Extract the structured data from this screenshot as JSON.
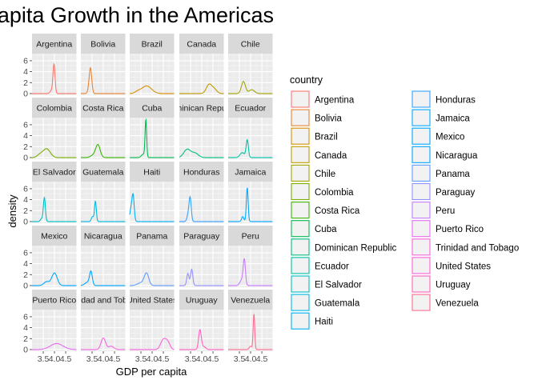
{
  "chart_data": {
    "type": "area",
    "title": "GDP Per Capita Growth in the Americas",
    "xlabel": "GDP per capita",
    "ylabel": "density",
    "x_ticks": [
      3.5,
      4.0,
      4.5
    ],
    "x_tick_labels": [
      "3.5",
      "4.0",
      "4.5"
    ],
    "y_ticks": [
      0,
      2,
      4,
      6
    ],
    "xlim": [
      3.0,
      4.98
    ],
    "ylim": [
      -0.3,
      7.3
    ],
    "grid": true,
    "legend_title": "country",
    "legend_position": "right",
    "series": [
      {
        "name": "Argentina",
        "color": "#F8766D",
        "peaks": [
          {
            "mu": 3.98,
            "sd": 0.045,
            "h": 5.2
          },
          {
            "mu": 3.88,
            "sd": 0.07,
            "h": 0.6
          }
        ]
      },
      {
        "name": "Bolivia",
        "color": "#EA8331",
        "peaks": [
          {
            "mu": 3.43,
            "sd": 0.055,
            "h": 4.6
          },
          {
            "mu": 3.34,
            "sd": 0.05,
            "h": 0.5
          }
        ]
      },
      {
        "name": "Brazil",
        "color": "#D89000",
        "peaks": [
          {
            "mu": 3.75,
            "sd": 0.22,
            "h": 1.4
          },
          {
            "mu": 3.35,
            "sd": 0.12,
            "h": 0.3
          }
        ]
      },
      {
        "name": "Canada",
        "color": "#C09B00",
        "peaks": [
          {
            "mu": 4.32,
            "sd": 0.12,
            "h": 1.6
          },
          {
            "mu": 4.55,
            "sd": 0.12,
            "h": 0.8
          }
        ]
      },
      {
        "name": "Chile",
        "color": "#A3A500",
        "peaks": [
          {
            "mu": 3.68,
            "sd": 0.09,
            "h": 2.2
          },
          {
            "mu": 4.05,
            "sd": 0.12,
            "h": 0.7
          }
        ]
      },
      {
        "name": "Colombia",
        "color": "#7CAE00",
        "peaks": [
          {
            "mu": 3.65,
            "sd": 0.16,
            "h": 1.6
          },
          {
            "mu": 3.35,
            "sd": 0.12,
            "h": 0.5
          }
        ]
      },
      {
        "name": "Costa Rica",
        "color": "#39B600",
        "peaks": [
          {
            "mu": 3.76,
            "sd": 0.1,
            "h": 2.3
          },
          {
            "mu": 3.55,
            "sd": 0.12,
            "h": 0.4
          }
        ]
      },
      {
        "name": "Cuba",
        "color": "#00BB4E",
        "peaks": [
          {
            "mu": 3.72,
            "sd": 0.035,
            "h": 6.8
          },
          {
            "mu": 3.6,
            "sd": 0.08,
            "h": 0.6
          }
        ]
      },
      {
        "name": "Dominican Republic",
        "color": "#00BF7D",
        "peaks": [
          {
            "mu": 3.35,
            "sd": 0.15,
            "h": 1.5
          },
          {
            "mu": 3.7,
            "sd": 0.15,
            "h": 0.8
          }
        ]
      },
      {
        "name": "Ecuador",
        "color": "#00C1A3",
        "peaks": [
          {
            "mu": 3.85,
            "sd": 0.05,
            "h": 3.2
          },
          {
            "mu": 3.63,
            "sd": 0.1,
            "h": 0.9
          }
        ]
      },
      {
        "name": "El Salvador",
        "color": "#00BFC4",
        "peaks": [
          {
            "mu": 3.55,
            "sd": 0.045,
            "h": 4.4
          },
          {
            "mu": 3.42,
            "sd": 0.05,
            "h": 0.5
          }
        ]
      },
      {
        "name": "Guatemala",
        "color": "#00BAE0",
        "peaks": [
          {
            "mu": 3.65,
            "sd": 0.04,
            "h": 3.7
          },
          {
            "mu": 3.52,
            "sd": 0.05,
            "h": 0.9
          }
        ]
      },
      {
        "name": "Haiti",
        "color": "#00B0F6",
        "peaks": [
          {
            "mu": 3.15,
            "sd": 0.05,
            "h": 4.8
          },
          {
            "mu": 3.05,
            "sd": 0.05,
            "h": 2.0
          }
        ]
      },
      {
        "name": "Honduras",
        "color": "#35A2FF",
        "peaks": [
          {
            "mu": 3.48,
            "sd": 0.05,
            "h": 4.4
          },
          {
            "mu": 3.38,
            "sd": 0.05,
            "h": 1.0
          }
        ]
      },
      {
        "name": "Jamaica",
        "color": "#00A9FF",
        "peaks": [
          {
            "mu": 3.85,
            "sd": 0.04,
            "h": 6.2
          },
          {
            "mu": 3.65,
            "sd": 0.05,
            "h": 0.9
          }
        ]
      },
      {
        "name": "Mexico",
        "color": "#00A5FF",
        "peaks": [
          {
            "mu": 4.0,
            "sd": 0.12,
            "h": 2.3
          },
          {
            "mu": 3.65,
            "sd": 0.12,
            "h": 0.7
          }
        ]
      },
      {
        "name": "Nicaragua",
        "color": "#00A5FF",
        "peaks": [
          {
            "mu": 3.45,
            "sd": 0.06,
            "h": 2.4
          },
          {
            "mu": 3.3,
            "sd": 0.12,
            "h": 0.6
          }
        ]
      },
      {
        "name": "Panama",
        "color": "#619CFF",
        "peaks": [
          {
            "mu": 3.75,
            "sd": 0.1,
            "h": 2.2
          },
          {
            "mu": 3.5,
            "sd": 0.15,
            "h": 0.5
          }
        ]
      },
      {
        "name": "Paraguay",
        "color": "#9590FF",
        "peaks": [
          {
            "mu": 3.55,
            "sd": 0.05,
            "h": 3.0
          },
          {
            "mu": 3.38,
            "sd": 0.05,
            "h": 2.2
          }
        ]
      },
      {
        "name": "Peru",
        "color": "#C77CFF",
        "peaks": [
          {
            "mu": 3.72,
            "sd": 0.05,
            "h": 4.6
          },
          {
            "mu": 3.6,
            "sd": 0.08,
            "h": 1.0
          }
        ]
      },
      {
        "name": "Puerto Rico",
        "color": "#E76BF3",
        "peaks": [
          {
            "mu": 4.1,
            "sd": 0.28,
            "h": 1.1
          }
        ]
      },
      {
        "name": "Trinidad and Tobago",
        "color": "#F564E3",
        "peaks": [
          {
            "mu": 4.0,
            "sd": 0.1,
            "h": 2.1
          },
          {
            "mu": 4.35,
            "sd": 0.12,
            "h": 0.6
          }
        ]
      },
      {
        "name": "United States",
        "color": "#FA62DB",
        "peaks": [
          {
            "mu": 4.5,
            "sd": 0.12,
            "h": 1.8
          },
          {
            "mu": 4.7,
            "sd": 0.1,
            "h": 1.2
          }
        ]
      },
      {
        "name": "Uruguay",
        "color": "#FF62BC",
        "peaks": [
          {
            "mu": 3.92,
            "sd": 0.06,
            "h": 3.6
          },
          {
            "mu": 4.1,
            "sd": 0.08,
            "h": 0.5
          }
        ]
      },
      {
        "name": "Venezuela",
        "color": "#FF6C91",
        "peaks": [
          {
            "mu": 4.15,
            "sd": 0.035,
            "h": 6.5
          },
          {
            "mu": 4.0,
            "sd": 0.06,
            "h": 0.6
          }
        ]
      }
    ]
  }
}
